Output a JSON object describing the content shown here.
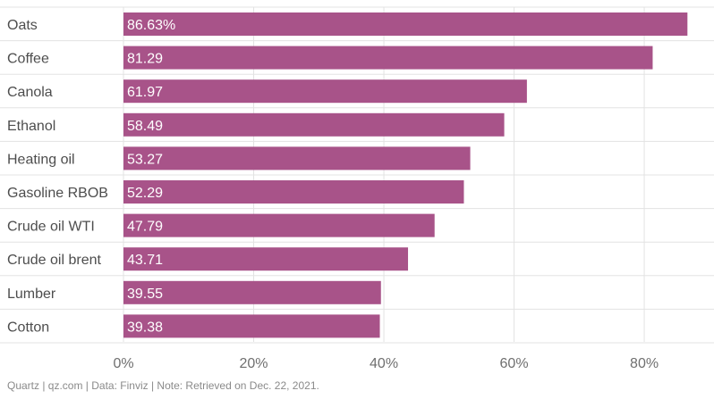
{
  "chart_data": {
    "type": "bar",
    "orientation": "horizontal",
    "categories": [
      "Oats",
      "Coffee",
      "Canola",
      "Ethanol",
      "Heating oil",
      "Gasoline RBOB",
      "Crude oil WTI",
      "Crude oil brent",
      "Lumber",
      "Cotton"
    ],
    "values": [
      86.63,
      81.29,
      61.97,
      58.49,
      53.27,
      52.29,
      47.79,
      43.71,
      39.55,
      39.38
    ],
    "value_labels": [
      "86.63%",
      "81.29",
      "61.97",
      "58.49",
      "53.27",
      "52.29",
      "47.79",
      "43.71",
      "39.55",
      "39.38"
    ],
    "xlim": [
      0,
      87
    ],
    "xticks": [
      0,
      20,
      40,
      60,
      80
    ],
    "xtick_labels": [
      "0%",
      "20%",
      "40%",
      "60%",
      "80%"
    ],
    "grid": true,
    "bar_color": "#a85389",
    "grid_color": "#e3e3e3",
    "title": "",
    "xlabel": "",
    "ylabel": ""
  },
  "footer": {
    "source": "Quartz | qz.com | Data: Finviz | Note: Retrieved on Dec. 22, 2021."
  }
}
